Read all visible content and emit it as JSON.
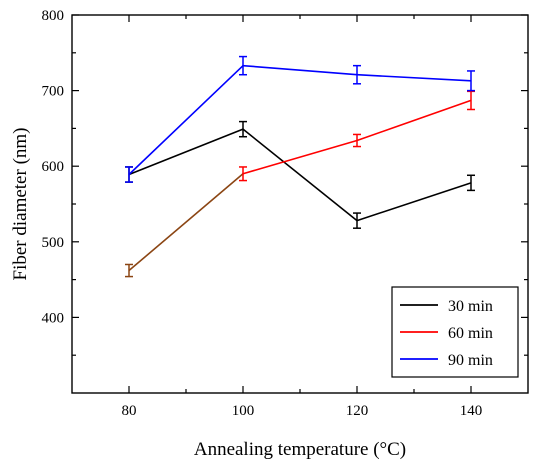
{
  "chart_data": {
    "type": "line",
    "title": "",
    "xlabel": "Annealing temperature (°C)",
    "ylabel": "Fiber diameter (nm)",
    "xlim": [
      70,
      150
    ],
    "ylim": [
      300,
      800
    ],
    "x_ticks": [
      80,
      100,
      120,
      140
    ],
    "x_minor_ticks": [
      90,
      110,
      130
    ],
    "y_ticks": [
      400,
      500,
      600,
      700,
      800
    ],
    "grid": false,
    "legend_position": "bottom-right",
    "series": [
      {
        "name": "30 min",
        "color": "#000000",
        "x": [
          80,
          100,
          120,
          140
        ],
        "y": [
          589,
          649,
          528,
          578
        ],
        "error": [
          10,
          10,
          10,
          10
        ]
      },
      {
        "name": "60 min",
        "color": "#ff0000",
        "first_segment_color": "#8b4513",
        "x": [
          80,
          100,
          120,
          140
        ],
        "y": [
          462,
          590,
          634,
          687
        ],
        "error": [
          8,
          9,
          8,
          12
        ]
      },
      {
        "name": "90 min",
        "color": "#0000ff",
        "x": [
          80,
          100,
          120,
          140
        ],
        "y": [
          589,
          733,
          721,
          713
        ],
        "error": [
          10,
          12,
          12,
          13
        ]
      }
    ]
  }
}
